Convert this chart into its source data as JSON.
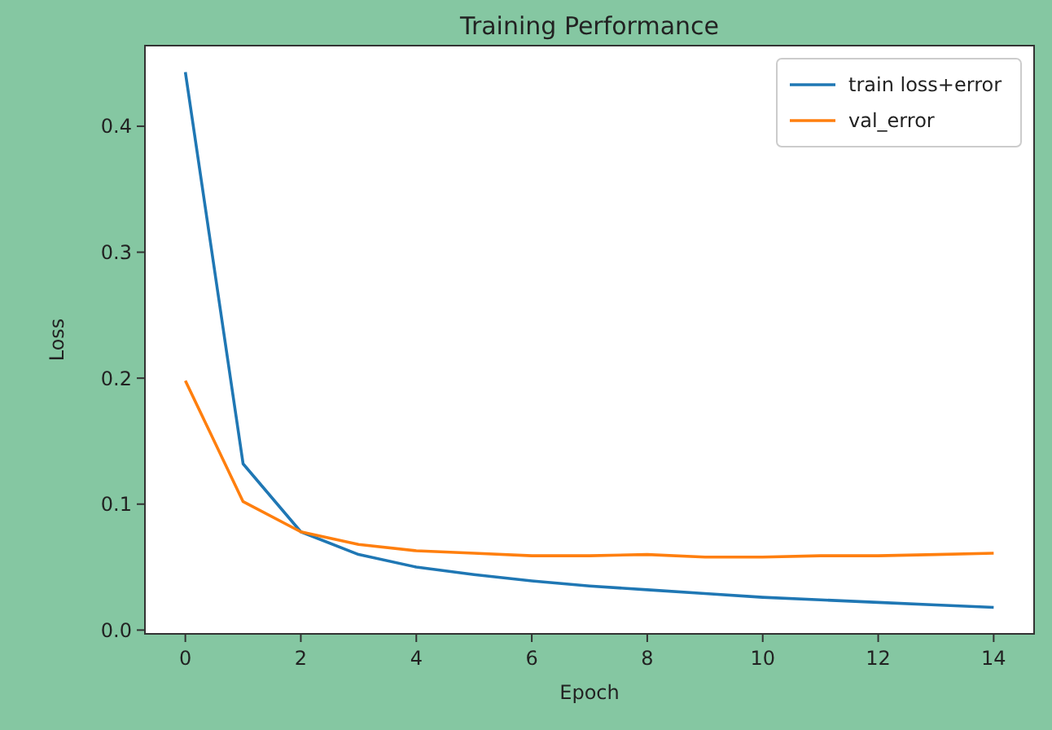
{
  "chart_data": {
    "type": "line",
    "title": "Training Performance",
    "xlabel": "Epoch",
    "ylabel": "Loss",
    "x": [
      0,
      1,
      2,
      3,
      4,
      5,
      6,
      7,
      8,
      9,
      10,
      11,
      12,
      13,
      14
    ],
    "series": [
      {
        "name": "train loss+error",
        "color": "#1f77b4",
        "values": [
          0.443,
          0.132,
          0.078,
          0.06,
          0.05,
          0.044,
          0.039,
          0.035,
          0.032,
          0.029,
          0.026,
          0.024,
          0.022,
          0.02,
          0.018
        ]
      },
      {
        "name": "val_error",
        "color": "#ff7f0e",
        "values": [
          0.198,
          0.102,
          0.078,
          0.068,
          0.063,
          0.061,
          0.059,
          0.059,
          0.06,
          0.058,
          0.058,
          0.059,
          0.059,
          0.06,
          0.061
        ]
      }
    ],
    "xlim": [
      -0.7,
      14.7
    ],
    "xticks": [
      0,
      2,
      4,
      6,
      8,
      10,
      12,
      14
    ],
    "ylim": [
      -0.003,
      0.464
    ],
    "yticks": [
      {
        "value": 0,
        "label": "0.0"
      },
      {
        "value": 0.1,
        "label": "0.1"
      },
      {
        "value": 0.2,
        "label": "0.2"
      },
      {
        "value": 0.3,
        "label": "0.3"
      },
      {
        "value": 0.4,
        "label": "0.4"
      }
    ],
    "legend": "top right",
    "grid": false,
    "marker": "none",
    "line_style": "solid"
  }
}
